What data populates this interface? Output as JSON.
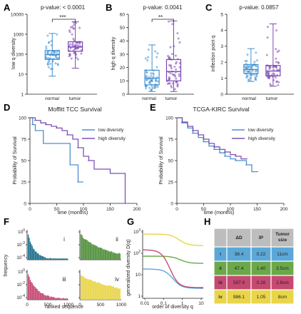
{
  "colors": {
    "normal": "#3f8fd0",
    "tumor": "#7b49b3",
    "lowdiv": "#4a90d0",
    "highdiv": "#7a52b8",
    "c_i": "#1f6f8b",
    "c_ii": "#4f8f3a",
    "c_iii": "#c4466f",
    "c_iv": "#e8d447",
    "h_i": "#5ba8d8",
    "h_ii": "#6ba84a",
    "h_iii": "#c44a72",
    "h_iv": "#e9d54a",
    "h_head": "#bdbdbd"
  },
  "panels": {
    "A": "A",
    "B": "B",
    "C": "C",
    "D": "D",
    "E": "E",
    "F": "F",
    "G": "G",
    "H": "H"
  },
  "chart_data": [
    {
      "panel": "A",
      "type": "box",
      "title": "p-value: < 0.0001",
      "ylabel": "low q diversity",
      "categories": [
        "normal",
        "tumor"
      ],
      "significance": "***",
      "yscale": "log",
      "ylim": [
        1,
        10000
      ],
      "yticks": [
        "1",
        "10",
        "100",
        "1000",
        "10000"
      ],
      "boxes": [
        {
          "name": "normal",
          "min": 8,
          "q1": 55,
          "median": 95,
          "q3": 155,
          "max": 1100
        },
        {
          "name": "tumor",
          "min": 20,
          "q1": 140,
          "median": 230,
          "q3": 420,
          "max": 4200
        }
      ]
    },
    {
      "panel": "B",
      "type": "box",
      "title": "p-value: 0.0041",
      "ylabel": "high q diversity",
      "categories": [
        "normal",
        "tumor"
      ],
      "significance": "**",
      "ylim": [
        0,
        60
      ],
      "yticks": [
        "0",
        "10",
        "20",
        "30",
        "40",
        "50",
        "60"
      ],
      "boxes": [
        {
          "name": "normal",
          "min": 2,
          "q1": 7,
          "median": 12,
          "q3": 18,
          "max": 37
        },
        {
          "name": "tumor",
          "min": 2,
          "q1": 10,
          "median": 17,
          "q3": 26,
          "max": 55
        }
      ]
    },
    {
      "panel": "C",
      "type": "box",
      "title": "p-value: 0.0857",
      "ylabel": "inflection point q",
      "categories": [
        "normal",
        "tumor"
      ],
      "ylim": [
        0,
        5
      ],
      "yticks": [
        "0",
        "1",
        "2",
        "3",
        "4",
        "5"
      ],
      "boxes": [
        {
          "name": "normal",
          "min": 0.8,
          "q1": 1.3,
          "median": 1.55,
          "q3": 1.85,
          "max": 2.85
        },
        {
          "name": "tumor",
          "min": 0.5,
          "q1": 1.15,
          "median": 1.45,
          "q3": 1.8,
          "max": 4.4
        }
      ]
    },
    {
      "panel": "D",
      "type": "line",
      "title": "Moffitt TCC Survival",
      "xlabel": "time (months)",
      "ylabel": "Probability of Survival",
      "xlim": [
        0,
        200
      ],
      "ylim": [
        0,
        100
      ],
      "xticks": [
        "0",
        "50",
        "100",
        "150",
        "200"
      ],
      "yticks": [
        "0",
        "25",
        "50",
        "75",
        "100"
      ],
      "series": [
        {
          "name": "low diversity",
          "x": [
            0,
            5,
            10,
            20,
            25,
            50,
            75,
            90,
            100
          ],
          "y": [
            100,
            92,
            85,
            85,
            70,
            70,
            45,
            25,
            25
          ]
        },
        {
          "name": "high diversity",
          "x": [
            0,
            10,
            20,
            30,
            40,
            50,
            60,
            70,
            80,
            90,
            100,
            110,
            120,
            130,
            150,
            170,
            178,
            180
          ],
          "y": [
            100,
            97,
            94,
            92,
            90,
            88,
            85,
            80,
            75,
            65,
            55,
            50,
            40,
            40,
            35,
            35,
            0,
            0
          ]
        }
      ]
    },
    {
      "panel": "E",
      "type": "line",
      "title": "TCGA-KIRC Survival",
      "xlabel": "time (months)",
      "ylabel": "Probability of Survival",
      "xlim": [
        0,
        200
      ],
      "ylim": [
        0,
        100
      ],
      "xticks": [
        "0",
        "50",
        "100",
        "150",
        "200"
      ],
      "yticks": [
        "0",
        "25",
        "50",
        "75",
        "100"
      ],
      "series": [
        {
          "name": "low diversity",
          "x": [
            0,
            10,
            20,
            30,
            40,
            50,
            60,
            70,
            80,
            90,
            100,
            110,
            120,
            130,
            140,
            150
          ],
          "y": [
            100,
            94,
            88,
            82,
            77,
            72,
            67,
            63,
            59,
            55,
            52,
            50,
            50,
            45,
            37,
            37
          ]
        },
        {
          "name": "high diversity",
          "x": [
            0,
            10,
            20,
            30,
            40,
            50,
            60,
            70,
            80,
            90,
            100,
            110,
            120,
            130
          ],
          "y": [
            100,
            95,
            90,
            85,
            80,
            75,
            70,
            66,
            63,
            60,
            57,
            55,
            52,
            52
          ]
        }
      ]
    },
    {
      "panel": "F",
      "type": "bar",
      "xlabel": "ranked sequence",
      "ylabel": "frequency",
      "yticks": [
        "10^0",
        "10^-2",
        "10^-4"
      ],
      "subplots": [
        {
          "name": "i",
          "xticks": [],
          "xmax": 900
        },
        {
          "name": "ii",
          "xticks": [],
          "xmax": 400
        },
        {
          "name": "iii",
          "xticks": [
            "0",
            "500",
            "1000"
          ],
          "xmax": 1000
        },
        {
          "name": "iv",
          "xticks": [
            "0",
            "500",
            "1000"
          ],
          "xmax": 1000
        }
      ]
    },
    {
      "panel": "G",
      "type": "line",
      "xlabel": "order of diversity q",
      "ylabel": "generalized diversity D(q)",
      "xscale": "log",
      "yscale": "log",
      "xticks": [
        "0.01",
        "0.1",
        "1",
        "10"
      ],
      "yticks": [
        "1",
        "10",
        "10^2",
        "10^3"
      ],
      "series": [
        {
          "name": "i",
          "color": "#5ba8d8"
        },
        {
          "name": "ii",
          "color": "#6ba84a"
        },
        {
          "name": "iii",
          "color": "#c44a72"
        },
        {
          "name": "iv",
          "color": "#e9d54a"
        }
      ]
    },
    {
      "panel": "H",
      "type": "table",
      "headers": [
        "",
        "ΔD",
        "IP",
        "Tumor size"
      ],
      "rows": [
        [
          "i",
          "38.4",
          "0.22",
          "11cm"
        ],
        [
          "ii",
          "47.4",
          "1.40",
          "3.5cm"
        ],
        [
          "iii",
          "597.9",
          "0.28",
          "2.8cm"
        ],
        [
          "iv",
          "986.1",
          "1.05",
          "8cm"
        ]
      ]
    }
  ]
}
